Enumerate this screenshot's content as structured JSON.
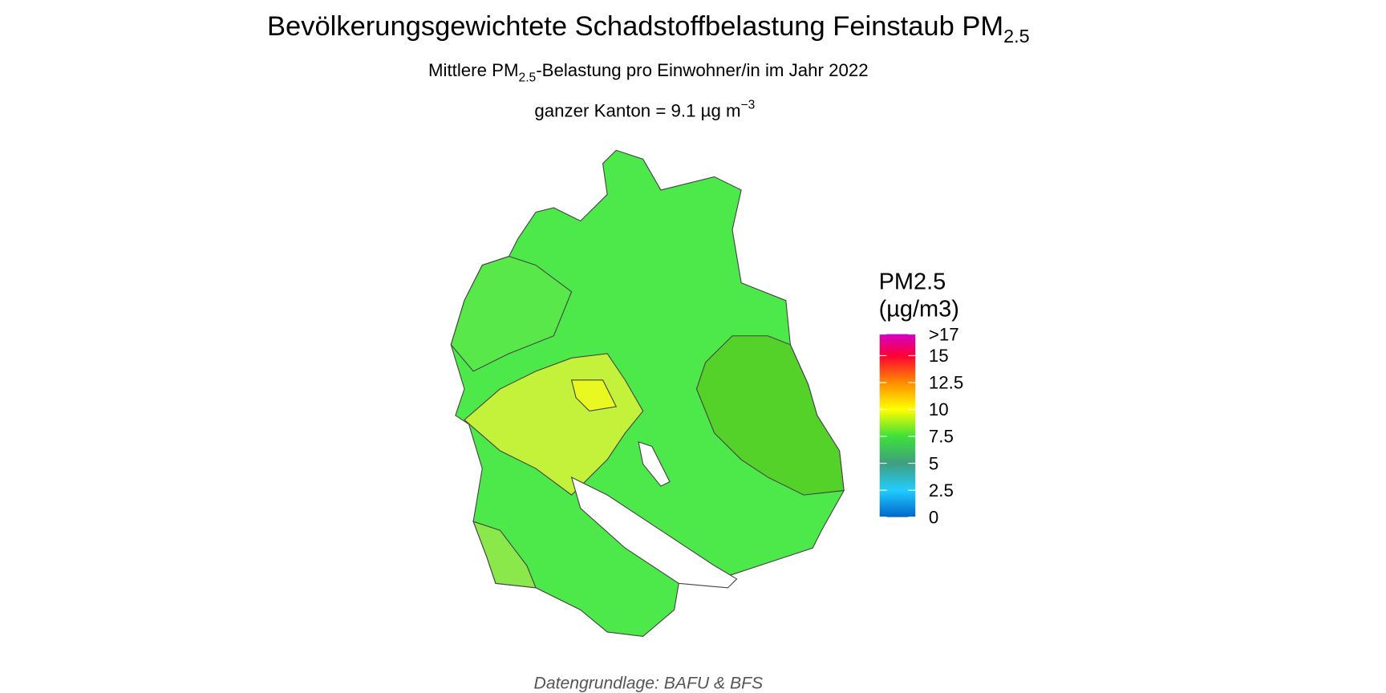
{
  "title": {
    "text": "Bevölkerungsgewichtete Schadstoffbelastung Feinstaub PM",
    "subscript": "2.5"
  },
  "subtitle": {
    "before": "Mittlere PM",
    "subscript": "2.5",
    "after": "-Belastung pro Einwohner/in im Jahr 2022"
  },
  "summary": {
    "text": "ganzer Kanton = 9.1 µg m",
    "superscript": "−3"
  },
  "legend": {
    "title": [
      "PM2.5",
      "(µg/m3)"
    ],
    "lim": [
      0,
      17
    ],
    "ticks": [
      0,
      2.5,
      5,
      7.5,
      10,
      12.5,
      15,
      {
        "value": 17,
        "label": ">17"
      }
    ],
    "colors": [
      "#0066cc",
      "#22ccff",
      "#3f9f7f",
      "#3ee03a",
      "#ffff00",
      "#ff8c00",
      "#ff0033",
      "#d200c8"
    ]
  },
  "caption": "Datengrundlage: BAFU & BFS"
}
